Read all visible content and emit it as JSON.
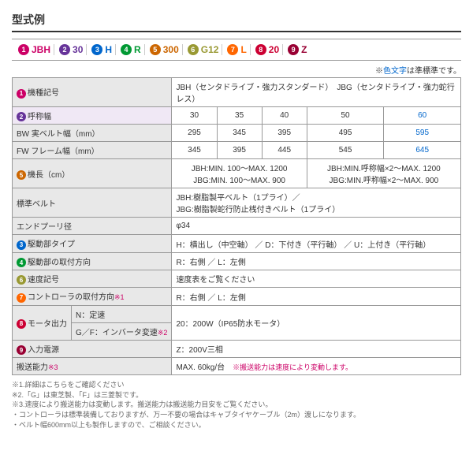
{
  "title": "型式例",
  "colors": {
    "c1": "#cc0066",
    "c2": "#663399",
    "c3": "#0066cc",
    "c4": "#009933",
    "c5": "#cc6600",
    "c6": "#999933",
    "c7": "#ff6600",
    "c8": "#cc0033",
    "c9": "#990033"
  },
  "badges": [
    {
      "n": "1",
      "label": "JBH",
      "c": "#cc0066"
    },
    {
      "n": "2",
      "label": "30",
      "c": "#663399"
    },
    {
      "n": "3",
      "label": "H",
      "c": "#0066cc"
    },
    {
      "n": "4",
      "label": "R",
      "c": "#009933"
    },
    {
      "n": "5",
      "label": "300",
      "c": "#cc6600"
    },
    {
      "n": "6",
      "label": "G12",
      "c": "#999933"
    },
    {
      "n": "7",
      "label": "L",
      "c": "#ff6600"
    },
    {
      "n": "8",
      "label": "20",
      "c": "#cc0033"
    },
    {
      "n": "9",
      "label": "Z",
      "c": "#990033"
    }
  ],
  "note_prefix": "※",
  "note_blue": "色文字",
  "note_suffix": "は準標準です。",
  "rows": {
    "r1": {
      "label": "機種記号",
      "val": "JBH（センタドライブ・強力スタンダード）　JBG（センタドライブ・強力蛇行レス）"
    },
    "r2": {
      "label": "呼称幅",
      "v1": "30",
      "v2": "35",
      "v3": "40",
      "v4": "50",
      "v5": "60"
    },
    "r3": {
      "label": "BW 実ベルト幅（mm）",
      "v1": "295",
      "v2": "345",
      "v3": "395",
      "v4": "495",
      "v5": "595"
    },
    "r4": {
      "label": "FW フレーム幅（mm）",
      "v1": "345",
      "v2": "395",
      "v3": "445",
      "v4": "545",
      "v5": "645"
    },
    "r5": {
      "label": "機長（cm）",
      "va": "JBH:MIN. 100～MAX. 1200\nJBG:MIN. 100～MAX. 900",
      "vb": "JBH:MIN.呼称幅×2～MAX. 1200\nJBG:MIN.呼称幅×2～MAX. 900"
    },
    "r6": {
      "label": "標準ベルト",
      "val": "JBH:樹脂製平ベルト（1プライ）／\nJBG:樹脂製蛇行防止桟付きベルト（1プライ）"
    },
    "r7": {
      "label": "エンドプーリ径",
      "val": "φ34"
    },
    "r8": {
      "label": "駆動部タイプ",
      "val": "H：横出し（中空軸） ／ D：下付き（平行軸） ／ U：上付き（平行軸）"
    },
    "r9": {
      "label": "駆動部の取付方向",
      "val": "R：右側 ／ L：左側"
    },
    "r10": {
      "label": "速度記号",
      "val": "速度表をご覧ください"
    },
    "r11": {
      "label": "コントローラの取付方向",
      "sup": "※1",
      "val": "R：右側 ／ L：左側"
    },
    "r12": {
      "label": "モータ出力",
      "sub1": "N：定速",
      "sub2": "G／F：インバータ変速",
      "sup": "※2",
      "val": "20：200W（IP65防水モータ）"
    },
    "r13": {
      "label": "入力電源",
      "val": "Z：200V三相"
    },
    "r14": {
      "label": "搬送能力",
      "sup": "※3",
      "val": "MAX. 60kg/台　",
      "note": "※搬送能力は速度により変動します。"
    }
  },
  "footnotes": [
    "※1.詳細はこちらをご確認ください",
    "※2.「G」は東芝製、「F」は三菱製です。",
    "※3.速度により搬送能力は変動します。搬送能力は搬送能力目安をご覧ください。",
    "・コントローラは標準装備しておりますが、万一不要の場合はキャブタイヤケーブル（2m）渡しになります。",
    "・ベルト幅600mm以上も製作しますので、ご相談ください。"
  ]
}
